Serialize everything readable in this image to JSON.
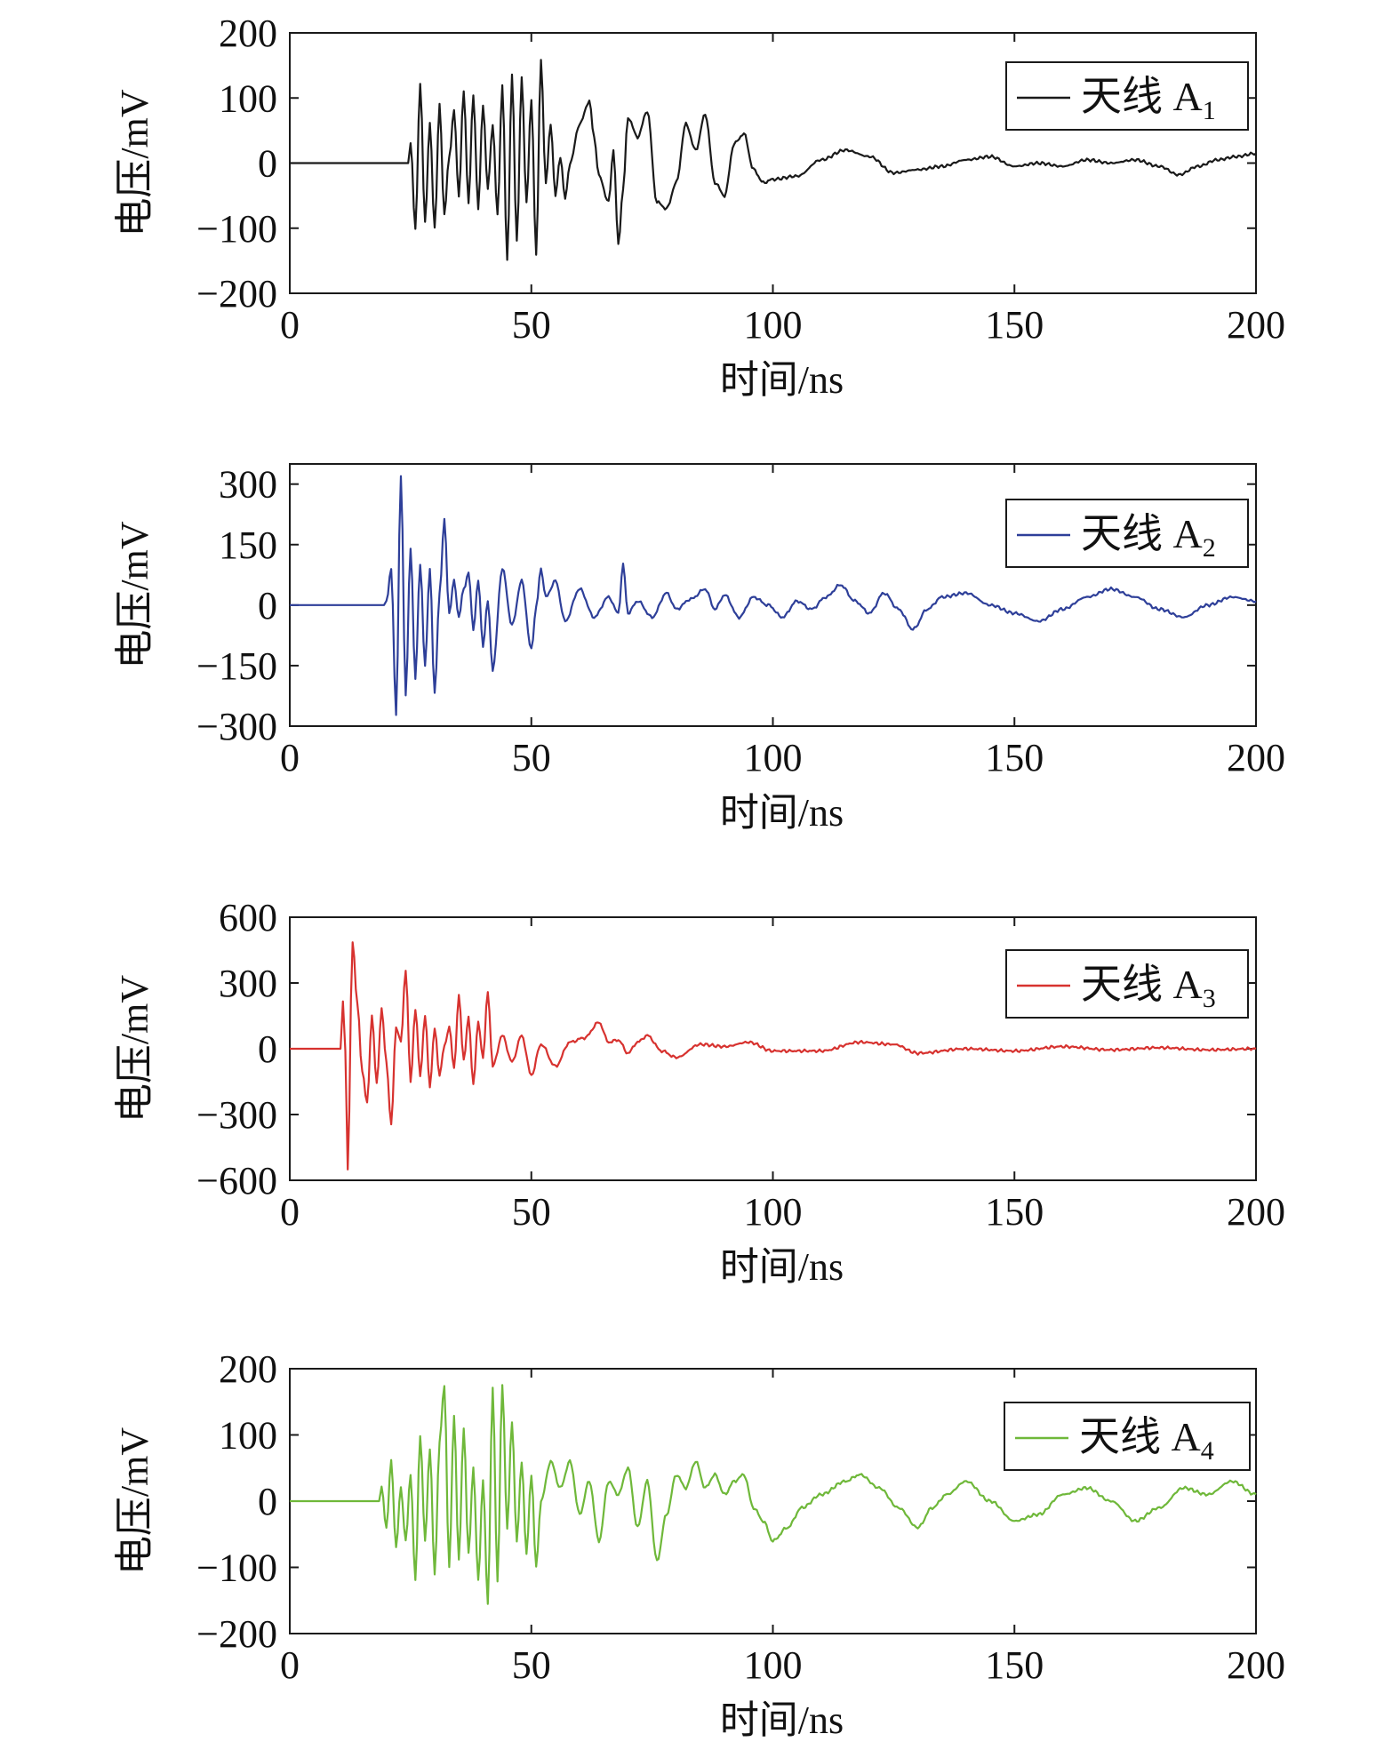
{
  "figure": {
    "x_axis_label": "时间/ns",
    "y_axis_label": "电压/mV"
  },
  "chart_data": [
    {
      "type": "line",
      "xlabel": "时间/ns",
      "ylabel": "电压/mV",
      "xlim": [
        0,
        200
      ],
      "ylim": [
        -200,
        200
      ],
      "x_ticks": [
        "0",
        "50",
        "100",
        "150",
        "200"
      ],
      "y_ticks": [
        "200",
        "100",
        "0",
        "−100",
        "−200"
      ],
      "y_tick_values": [
        200,
        100,
        0,
        -100,
        -200
      ],
      "legend": {
        "prefix": "天线 A",
        "subscript": "1",
        "placement": "top-right"
      },
      "color": "#1a1a1a",
      "series": [
        {
          "name": "天线 A1",
          "x": [
            0,
            24.5,
            25,
            26,
            27,
            28,
            29,
            30,
            31,
            32,
            33,
            34,
            35,
            36,
            37,
            38,
            39,
            40,
            41,
            42,
            43,
            44,
            45,
            46,
            47,
            48,
            49,
            50,
            51,
            52,
            53,
            54,
            55,
            56,
            57,
            58,
            60,
            62,
            63,
            64,
            66,
            67,
            68,
            69,
            70,
            72,
            74,
            76,
            78,
            80,
            82,
            84,
            86,
            88,
            90,
            92,
            94,
            96,
            98,
            100,
            105,
            110,
            115,
            120,
            125,
            130,
            135,
            140,
            145,
            150,
            155,
            160,
            165,
            170,
            175,
            180,
            184,
            188,
            192,
            196,
            200
          ],
          "values": [
            0,
            0,
            30,
            -100,
            120,
            -90,
            60,
            -100,
            90,
            -80,
            10,
            80,
            -50,
            110,
            -60,
            105,
            -70,
            90,
            -40,
            60,
            -80,
            120,
            -150,
            135,
            -120,
            130,
            -60,
            95,
            -140,
            158,
            -30,
            60,
            -50,
            10,
            -55,
            0,
            60,
            95,
            40,
            -20,
            -60,
            20,
            -125,
            -40,
            70,
            40,
            80,
            -60,
            -70,
            -30,
            60,
            20,
            75,
            -30,
            -50,
            30,
            45,
            -10,
            -30,
            -25,
            -20,
            5,
            20,
            10,
            -15,
            -10,
            -5,
            5,
            10,
            -5,
            0,
            -5,
            5,
            0,
            5,
            -5,
            -18,
            -5,
            5,
            10,
            15
          ]
        }
      ]
    },
    {
      "type": "line",
      "xlabel": "时间/ns",
      "ylabel": "电压/mV",
      "xlim": [
        0,
        200
      ],
      "ylim": [
        -300,
        350
      ],
      "x_ticks": [
        "0",
        "50",
        "100",
        "150",
        "200"
      ],
      "y_ticks": [
        "300",
        "150",
        "0",
        "−150",
        "−300"
      ],
      "y_tick_values": [
        300,
        150,
        0,
        -150,
        -300
      ],
      "legend": {
        "prefix": "天线 A",
        "subscript": "2",
        "placement": "top-right"
      },
      "color": "#2e3f99",
      "series": [
        {
          "name": "天线 A2",
          "x": [
            0,
            19.5,
            20,
            21,
            22,
            23,
            24,
            25,
            26,
            27,
            28,
            29,
            30,
            31,
            32,
            33,
            34,
            35,
            36,
            37,
            38,
            39,
            40,
            41,
            42,
            44,
            46,
            48,
            50,
            51,
            52,
            53,
            55,
            57,
            60,
            63,
            66,
            68,
            69,
            70,
            72,
            75,
            78,
            80,
            83,
            86,
            88,
            90,
            93,
            96,
            99,
            102,
            105,
            108,
            111,
            114,
            117,
            120,
            123,
            126,
            129,
            132,
            135,
            140,
            145,
            150,
            155,
            160,
            165,
            170,
            175,
            180,
            185,
            190,
            195,
            200
          ],
          "values": [
            0,
            0,
            10,
            90,
            -270,
            320,
            -220,
            140,
            -180,
            100,
            -150,
            90,
            -220,
            30,
            210,
            -20,
            60,
            -30,
            40,
            80,
            -60,
            60,
            -100,
            10,
            -160,
            90,
            -50,
            60,
            -110,
            -5,
            90,
            20,
            60,
            -40,
            40,
            -30,
            20,
            -20,
            100,
            -20,
            10,
            -30,
            30,
            -10,
            15,
            40,
            -10,
            25,
            -30,
            20,
            0,
            -30,
            10,
            -10,
            20,
            50,
            10,
            -20,
            30,
            -10,
            -60,
            -10,
            20,
            30,
            0,
            -20,
            -40,
            -10,
            20,
            40,
            20,
            -10,
            -30,
            0,
            20,
            10
          ]
        }
      ]
    },
    {
      "type": "line",
      "xlabel": "时间/ns",
      "ylabel": "电压/mV",
      "xlim": [
        0,
        200
      ],
      "ylim": [
        -600,
        600
      ],
      "x_ticks": [
        "0",
        "50",
        "100",
        "150",
        "200"
      ],
      "y_ticks": [
        "600",
        "300",
        "0",
        "−300",
        "−600"
      ],
      "y_tick_values": [
        600,
        300,
        0,
        -300,
        -600
      ],
      "legend": {
        "prefix": "天线 A",
        "subscript": "3",
        "placement": "top-right"
      },
      "color": "#d7322f",
      "series": [
        {
          "name": "天线 A3",
          "x": [
            0,
            10.5,
            11,
            11.5,
            12,
            13,
            14,
            15,
            16,
            17,
            18,
            19,
            20,
            21,
            22,
            23,
            24,
            25,
            26,
            27,
            28,
            29,
            30,
            31,
            32,
            33,
            34,
            35,
            36,
            37,
            38,
            39,
            40,
            41,
            42,
            44,
            46,
            48,
            50,
            52,
            55,
            58,
            61,
            64,
            66,
            68,
            70,
            72,
            74,
            77,
            80,
            85,
            90,
            95,
            100,
            110,
            118,
            125,
            130,
            140,
            150,
            160,
            170,
            180,
            190,
            200
          ],
          "values": [
            0,
            0,
            220,
            -10,
            -550,
            490,
            200,
            -100,
            -250,
            150,
            -160,
            180,
            -60,
            -350,
            100,
            30,
            360,
            -150,
            180,
            -120,
            150,
            -170,
            90,
            -120,
            10,
            100,
            -90,
            240,
            -50,
            140,
            -160,
            120,
            -40,
            260,
            -80,
            60,
            -60,
            60,
            -120,
            20,
            -80,
            30,
            50,
            120,
            30,
            40,
            -20,
            30,
            60,
            -10,
            -40,
            20,
            10,
            30,
            -10,
            -10,
            30,
            20,
            -20,
            0,
            -10,
            10,
            -5,
            5,
            -5,
            0
          ]
        }
      ]
    },
    {
      "type": "line",
      "xlabel": "时间/ns",
      "ylabel": "电压/mV",
      "xlim": [
        0,
        200
      ],
      "ylim": [
        -200,
        200
      ],
      "x_ticks": [
        "0",
        "50",
        "100",
        "150",
        "200"
      ],
      "y_ticks": [
        "200",
        "100",
        "0",
        "−100",
        "−200"
      ],
      "y_tick_values": [
        200,
        100,
        0,
        -100,
        -200
      ],
      "legend": {
        "prefix": "天线 A",
        "subscript": "4",
        "placement": "top-right"
      },
      "color": "#6fb83a",
      "series": [
        {
          "name": "天线 A4",
          "x": [
            0,
            18.5,
            19,
            20,
            21,
            22,
            23,
            24,
            25,
            26,
            27,
            28,
            29,
            30,
            31,
            32,
            33,
            34,
            35,
            36,
            37,
            38,
            39,
            40,
            41,
            42,
            43,
            44,
            45,
            46,
            47,
            48,
            49,
            50,
            51,
            52,
            54,
            56,
            58,
            60,
            62,
            64,
            66,
            68,
            70,
            72,
            74,
            76,
            78,
            80,
            82,
            84,
            86,
            88,
            90,
            92,
            94,
            96,
            98,
            100,
            103,
            106,
            110,
            115,
            118,
            122,
            126,
            130,
            133,
            136,
            140,
            145,
            150,
            155,
            160,
            165,
            170,
            175,
            180,
            185,
            190,
            195,
            200
          ],
          "values": [
            0,
            0,
            20,
            -40,
            60,
            -70,
            20,
            -60,
            40,
            -120,
            100,
            -60,
            80,
            -110,
            90,
            175,
            -100,
            130,
            -90,
            110,
            -80,
            50,
            -120,
            30,
            -155,
            170,
            -120,
            175,
            -40,
            120,
            -60,
            60,
            -80,
            40,
            -100,
            0,
            60,
            20,
            60,
            -20,
            30,
            -60,
            30,
            10,
            50,
            -40,
            30,
            -90,
            -20,
            40,
            20,
            60,
            20,
            40,
            10,
            30,
            40,
            -10,
            -30,
            -60,
            -40,
            -10,
            10,
            30,
            40,
            20,
            -10,
            -40,
            -10,
            10,
            30,
            0,
            -30,
            -20,
            10,
            20,
            0,
            -30,
            -10,
            20,
            10,
            30,
            10
          ]
        }
      ]
    }
  ]
}
